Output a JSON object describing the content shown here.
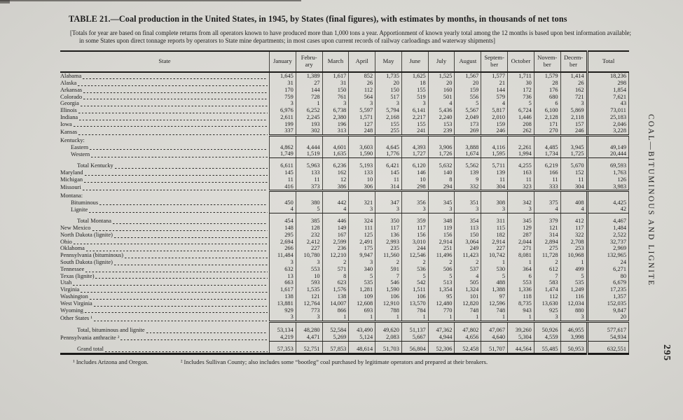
{
  "page": {
    "title": "TABLE 21.—Coal production in the United States, in 1945, by States (final figures), with estimates by months, in thousands of net tons",
    "note": "[Totals for year are based on final complete returns from all operators known to have produced more than 1,000 tons a year.  Apportionment of known yearly total among the 12 months is based upon best information available; in some States upon direct tonnage reports by operators to State mine departments; in most cases upon current records of railway carloadings and waterway shipments]",
    "side_label": "COAL—BITUMINOUS AND LIGNITE",
    "page_number": "295",
    "footnote1": "¹ Includes Arizona and Oregon.",
    "footnote2": "² Includes Sullivan County; also includes some “bootleg” coal purchased by legitimate operators and prepared at their breakers."
  },
  "table": {
    "columns": [
      "State",
      "January",
      "Febru-\nary",
      "March",
      "April",
      "May",
      "June",
      "July",
      "August",
      "Septem-\nber",
      "October",
      "Novem-\nber",
      "Decem-\nber",
      "Total"
    ],
    "rows": [
      {
        "label": "Alabama",
        "style": "plain",
        "values": [
          "1,645",
          "1,389",
          "1,617",
          "852",
          "1,735",
          "1,625",
          "1,525",
          "1,567",
          "1,577",
          "1,711",
          "1,579",
          "1,414",
          "18,236"
        ]
      },
      {
        "label": "Alaska",
        "style": "plain",
        "values": [
          "31",
          "27",
          "31",
          "26",
          "20",
          "18",
          "20",
          "20",
          "21",
          "30",
          "28",
          "26",
          "298"
        ]
      },
      {
        "label": "Arkansas",
        "style": "plain",
        "values": [
          "170",
          "144",
          "150",
          "112",
          "150",
          "155",
          "160",
          "159",
          "144",
          "172",
          "176",
          "162",
          "1,854"
        ]
      },
      {
        "label": "Colorado",
        "style": "plain",
        "values": [
          "759",
          "728",
          "761",
          "564",
          "517",
          "519",
          "501",
          "556",
          "579",
          "736",
          "680",
          "721",
          "7,621"
        ]
      },
      {
        "label": "Georgia",
        "style": "plain",
        "values": [
          "3",
          "1",
          "3",
          "3",
          "3",
          "3",
          "4",
          "5",
          "4",
          "5",
          "6",
          "3",
          "43"
        ]
      },
      {
        "label": "Illinois",
        "style": "plain",
        "values": [
          "6,976",
          "6,252",
          "6,738",
          "5,597",
          "5,794",
          "6,141",
          "5,436",
          "5,567",
          "5,817",
          "6,724",
          "6,100",
          "5,869",
          "73,011"
        ]
      },
      {
        "label": "Indiana",
        "style": "plain",
        "values": [
          "2,611",
          "2,245",
          "2,380",
          "1,571",
          "2,168",
          "2,217",
          "2,240",
          "2,049",
          "2,010",
          "1,446",
          "2,128",
          "2,118",
          "25,183"
        ]
      },
      {
        "label": "Iowa",
        "style": "plain",
        "values": [
          "199",
          "193",
          "196",
          "127",
          "155",
          "155",
          "153",
          "173",
          "159",
          "208",
          "171",
          "157",
          "2,046"
        ]
      },
      {
        "label": "Kansas",
        "style": "plain",
        "sepBelow": "double",
        "values": [
          "337",
          "302",
          "313",
          "248",
          "255",
          "241",
          "239",
          "269",
          "246",
          "262",
          "270",
          "246",
          "3,228"
        ]
      },
      {
        "label": "Kentucky:",
        "style": "group",
        "gapsm": true,
        "values": null
      },
      {
        "label": "Eastern",
        "style": "sub",
        "values": [
          "4,862",
          "4,444",
          "4,601",
          "3,603",
          "4,645",
          "4,393",
          "3,906",
          "3,888",
          "4,116",
          "2,261",
          "4,485",
          "3,945",
          "49,149"
        ]
      },
      {
        "label": "Western",
        "style": "sub",
        "sepBelow": "single",
        "values": [
          "1,749",
          "1,519",
          "1,635",
          "1,590",
          "1,776",
          "1,727",
          "1,726",
          "1,674",
          "1,595",
          "1,994",
          "1,734",
          "1,725",
          "20,444"
        ]
      },
      {
        "label": "Total Kentucky",
        "style": "total",
        "gap": true,
        "values": [
          "6,611",
          "5,963",
          "6,236",
          "5,193",
          "6,421",
          "6,120",
          "5,632",
          "5,562",
          "5,711",
          "4,255",
          "6,219",
          "5,670",
          "69,593"
        ]
      },
      {
        "label": "Maryland",
        "style": "plain",
        "values": [
          "145",
          "133",
          "162",
          "133",
          "145",
          "146",
          "140",
          "139",
          "139",
          "163",
          "166",
          "152",
          "1,763"
        ]
      },
      {
        "label": "Michigan",
        "style": "plain",
        "values": [
          "11",
          "11",
          "12",
          "10",
          "11",
          "10",
          "8",
          "9",
          "11",
          "11",
          "11",
          "11",
          "126"
        ]
      },
      {
        "label": "Missouri",
        "style": "plain",
        "sepBelow": "double",
        "values": [
          "416",
          "373",
          "386",
          "306",
          "314",
          "298",
          "294",
          "332",
          "304",
          "323",
          "333",
          "304",
          "3,983"
        ]
      },
      {
        "label": "Montana:",
        "style": "group",
        "gapsm": true,
        "values": null
      },
      {
        "label": "Bituminous",
        "style": "sub",
        "values": [
          "450",
          "380",
          "442",
          "321",
          "347",
          "356",
          "345",
          "351",
          "308",
          "342",
          "375",
          "408",
          "4,425"
        ]
      },
      {
        "label": "Lignite",
        "style": "sub",
        "sepBelow": "single",
        "values": [
          "4",
          "5",
          "4",
          "3",
          "3",
          "3",
          "3",
          "3",
          "3",
          "3",
          "4",
          "4",
          "42"
        ]
      },
      {
        "label": "Total Montana",
        "style": "total",
        "gap": true,
        "values": [
          "454",
          "385",
          "446",
          "324",
          "350",
          "359",
          "348",
          "354",
          "311",
          "345",
          "379",
          "412",
          "4,467"
        ]
      },
      {
        "label": "New Mexico",
        "style": "plain",
        "values": [
          "148",
          "128",
          "149",
          "111",
          "117",
          "117",
          "119",
          "113",
          "115",
          "129",
          "121",
          "117",
          "1,484"
        ]
      },
      {
        "label": "North Dakota (lignite)",
        "style": "plain",
        "values": [
          "295",
          "232",
          "167",
          "125",
          "136",
          "156",
          "156",
          "150",
          "182",
          "287",
          "314",
          "322",
          "2,522"
        ]
      },
      {
        "label": "Ohio",
        "style": "plain",
        "values": [
          "2,694",
          "2,412",
          "2,599",
          "2,491",
          "2,993",
          "3,010",
          "2,914",
          "3,064",
          "2,914",
          "2,044",
          "2,894",
          "2,708",
          "32,737"
        ]
      },
      {
        "label": "Oklahoma",
        "style": "plain",
        "values": [
          "266",
          "227",
          "236",
          "175",
          "235",
          "244",
          "251",
          "249",
          "227",
          "271",
          "275",
          "253",
          "2,969"
        ]
      },
      {
        "label": "Pennsylvania (bituminous)",
        "style": "plain",
        "values": [
          "11,484",
          "10,780",
          "12,210",
          "9,947",
          "11,560",
          "12,546",
          "11,496",
          "11,423",
          "10,742",
          "8,081",
          "11,728",
          "10,968",
          "132,965"
        ]
      },
      {
        "label": "South Dakota (lignite)",
        "style": "plain",
        "values": [
          "3",
          "3",
          "2",
          "3",
          "2",
          "2",
          "2",
          "2",
          "1",
          "1",
          "2",
          "1",
          "24"
        ]
      },
      {
        "label": "Tennessee",
        "style": "plain",
        "values": [
          "632",
          "553",
          "571",
          "340",
          "591",
          "536",
          "506",
          "537",
          "530",
          "364",
          "612",
          "499",
          "6,271"
        ]
      },
      {
        "label": "Texas (lignite)",
        "style": "plain",
        "values": [
          "13",
          "10",
          "8",
          "5",
          "7",
          "5",
          "5",
          "4",
          "5",
          "6",
          "7",
          "5",
          "80"
        ]
      },
      {
        "label": "Utah",
        "style": "plain",
        "values": [
          "663",
          "593",
          "623",
          "535",
          "546",
          "542",
          "513",
          "505",
          "488",
          "553",
          "583",
          "535",
          "6,679"
        ]
      },
      {
        "label": "Virginia",
        "style": "plain",
        "values": [
          "1,617",
          "1,535",
          "1,576",
          "1,281",
          "1,590",
          "1,511",
          "1,354",
          "1,324",
          "1,388",
          "1,336",
          "1,474",
          "1,249",
          "17,235"
        ]
      },
      {
        "label": "Washington",
        "style": "plain",
        "values": [
          "138",
          "121",
          "138",
          "109",
          "106",
          "106",
          "95",
          "101",
          "97",
          "118",
          "112",
          "116",
          "1,357"
        ]
      },
      {
        "label": "West Virginia",
        "style": "plain",
        "values": [
          "13,881",
          "12,764",
          "14,007",
          "12,608",
          "12,910",
          "13,570",
          "12,480",
          "12,820",
          "12,596",
          "8,735",
          "13,630",
          "12,034",
          "152,035"
        ]
      },
      {
        "label": "Wyoming",
        "style": "plain",
        "values": [
          "929",
          "773",
          "866",
          "693",
          "788",
          "784",
          "770",
          "748",
          "748",
          "943",
          "925",
          "880",
          "9,847"
        ]
      },
      {
        "label": "Other States ¹",
        "style": "plain",
        "sepBelow": "double",
        "values": [
          "3",
          "3",
          "1",
          "1",
          "1",
          "1",
          "1",
          "1",
          "1",
          "1",
          "3",
          "3",
          "20"
        ]
      },
      {
        "label": "Total, bituminous and lignite",
        "style": "total",
        "gap": true,
        "values": [
          "53,134",
          "48,280",
          "52,584",
          "43,490",
          "49,620",
          "51,137",
          "47,362",
          "47,802",
          "47,067",
          "39,260",
          "50,926",
          "46,955",
          "577,617"
        ]
      },
      {
        "label": "Pennsylvania anthracite ²",
        "style": "plain",
        "sepBelow": "single",
        "values": [
          "4,219",
          "4,471",
          "5,269",
          "5,124",
          "2,083",
          "5,667",
          "4,944",
          "4,656",
          "4,640",
          "5,304",
          "4,559",
          "3,998",
          "54,934"
        ]
      },
      {
        "label": "Grand total",
        "style": "total",
        "gap": true,
        "bottom": true,
        "values": [
          "57,353",
          "52,751",
          "57,853",
          "48,614",
          "51,703",
          "56,804",
          "52,306",
          "52,458",
          "51,707",
          "44,564",
          "55,485",
          "50,953",
          "632,551"
        ]
      }
    ]
  }
}
